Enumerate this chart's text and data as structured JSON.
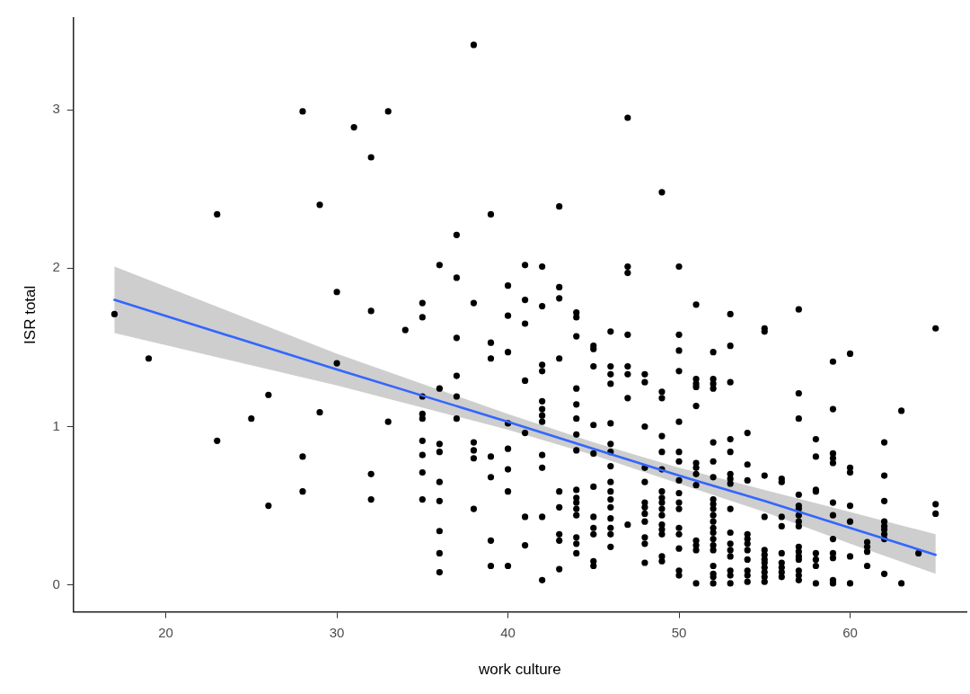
{
  "chart_data": {
    "type": "scatter",
    "xlabel": "work culture",
    "ylabel": "ISR total",
    "xlim": [
      14.6,
      66.8
    ],
    "ylim": [
      -0.17,
      3.58
    ],
    "xticks": [
      20,
      30,
      40,
      50,
      60
    ],
    "yticks": [
      0,
      1,
      2,
      3
    ],
    "grid": false,
    "legend": false,
    "series": [
      {
        "type": "scatter",
        "color": "#000000",
        "marker": "circle",
        "x": [
          17,
          19,
          23,
          23,
          25,
          26,
          26,
          28,
          28,
          28,
          29,
          29,
          30,
          30,
          31,
          32,
          32,
          32,
          32,
          33,
          33,
          34,
          35,
          35,
          35,
          35,
          35,
          35,
          35,
          35,
          35,
          36,
          36,
          36,
          36,
          36,
          36,
          36,
          36,
          36,
          37,
          37,
          37,
          37,
          37,
          37,
          38,
          38,
          38,
          38,
          38,
          38,
          39,
          39,
          39,
          39,
          39,
          39,
          39,
          40,
          40,
          40,
          40,
          40,
          40,
          40,
          40,
          41,
          41,
          41,
          41,
          41,
          41,
          41,
          42,
          42,
          42,
          42,
          42,
          42,
          42,
          42,
          42,
          42,
          42,
          42,
          43,
          43,
          43,
          43,
          43,
          43,
          43,
          43,
          43,
          44,
          44,
          44,
          44,
          44,
          44,
          44,
          44,
          44,
          44,
          44,
          44,
          44,
          44,
          44,
          44,
          45,
          45,
          45,
          45,
          45,
          45,
          45,
          45,
          45,
          45,
          45,
          46,
          46,
          46,
          46,
          46,
          46,
          46,
          46,
          46,
          46,
          46,
          46,
          46,
          46,
          46,
          46,
          47,
          47,
          47,
          47,
          47,
          47,
          47,
          47,
          48,
          48,
          48,
          48,
          48,
          48,
          48,
          48,
          48,
          48,
          48,
          48,
          49,
          49,
          49,
          49,
          49,
          49,
          49,
          49,
          49,
          49,
          49,
          49,
          49,
          49,
          49,
          49,
          50,
          50,
          50,
          50,
          50,
          50,
          50,
          50,
          50,
          50,
          50,
          50,
          50,
          50,
          50,
          50,
          51,
          51,
          51,
          51,
          51,
          51,
          51,
          51,
          51,
          51,
          51,
          51,
          51,
          52,
          52,
          52,
          52,
          52,
          52,
          52,
          52,
          52,
          52,
          52,
          52,
          52,
          52,
          52,
          52,
          52,
          52,
          52,
          52,
          52,
          53,
          53,
          53,
          53,
          53,
          53,
          53,
          53,
          53,
          53,
          53,
          53,
          53,
          53,
          53,
          53,
          54,
          54,
          54,
          54,
          54,
          54,
          54,
          54,
          54,
          54,
          54,
          55,
          55,
          55,
          55,
          55,
          55,
          55,
          55,
          55,
          55,
          55,
          55,
          56,
          56,
          56,
          56,
          56,
          56,
          56,
          56,
          56,
          57,
          57,
          57,
          57,
          57,
          57,
          57,
          57,
          57,
          57,
          57,
          57,
          57,
          57,
          57,
          57,
          58,
          58,
          58,
          58,
          58,
          58,
          58,
          58,
          59,
          59,
          59,
          59,
          59,
          59,
          59,
          59,
          59,
          59,
          59,
          59,
          60,
          60,
          60,
          60,
          60,
          60,
          60,
          61,
          61,
          61,
          61,
          62,
          62,
          62,
          62,
          62,
          62,
          62,
          62,
          62,
          63,
          63,
          64,
          65,
          65,
          65
        ],
        "values": [
          1.71,
          1.43,
          2.34,
          0.91,
          1.05,
          1.2,
          0.5,
          2.99,
          0.81,
          0.59,
          2.4,
          1.09,
          1.85,
          1.4,
          2.89,
          2.7,
          1.73,
          0.7,
          0.54,
          2.99,
          1.03,
          1.61,
          1.78,
          1.69,
          1.19,
          1.08,
          1.05,
          0.91,
          0.82,
          0.71,
          0.54,
          2.02,
          1.24,
          0.89,
          0.84,
          0.65,
          0.53,
          0.34,
          0.2,
          0.08,
          2.21,
          1.94,
          1.56,
          1.32,
          1.19,
          1.05,
          3.41,
          1.78,
          0.9,
          0.85,
          0.8,
          0.48,
          2.34,
          1.53,
          1.43,
          0.81,
          0.68,
          0.28,
          0.12,
          1.89,
          1.7,
          1.47,
          1.02,
          0.86,
          0.73,
          0.59,
          0.12,
          2.02,
          1.8,
          1.65,
          1.29,
          0.96,
          0.43,
          0.25,
          2.01,
          1.76,
          1.39,
          1.35,
          1.16,
          1.11,
          1.07,
          1.03,
          0.82,
          0.74,
          0.43,
          0.03,
          2.39,
          1.88,
          1.81,
          1.43,
          0.59,
          0.49,
          0.32,
          0.28,
          0.1,
          1.72,
          1.69,
          1.57,
          1.24,
          1.14,
          1.05,
          0.95,
          0.85,
          0.6,
          0.55,
          0.52,
          0.48,
          0.44,
          0.3,
          0.26,
          0.2,
          1.51,
          1.49,
          1.38,
          1.01,
          0.83,
          0.62,
          0.43,
          0.36,
          0.32,
          0.15,
          0.12,
          1.6,
          1.38,
          1.33,
          1.27,
          1.02,
          0.89,
          0.84,
          0.75,
          0.65,
          0.59,
          0.54,
          0.49,
          0.42,
          0.36,
          0.32,
          0.24,
          2.95,
          2.01,
          1.97,
          1.58,
          1.38,
          1.33,
          1.18,
          0.38,
          1.33,
          1.28,
          1.0,
          0.74,
          0.65,
          0.52,
          0.49,
          0.45,
          0.4,
          0.3,
          0.26,
          0.14,
          2.48,
          1.22,
          1.18,
          0.94,
          0.84,
          0.73,
          0.59,
          0.55,
          0.52,
          0.48,
          0.44,
          0.38,
          0.35,
          0.32,
          0.18,
          0.15,
          2.01,
          1.58,
          1.48,
          1.35,
          1.03,
          0.84,
          0.78,
          0.66,
          0.58,
          0.52,
          0.48,
          0.36,
          0.32,
          0.23,
          0.09,
          0.06,
          1.77,
          1.3,
          1.27,
          1.25,
          1.13,
          0.77,
          0.74,
          0.7,
          0.63,
          0.28,
          0.25,
          0.22,
          0.01,
          1.47,
          1.3,
          1.27,
          1.24,
          0.9,
          0.78,
          0.68,
          0.54,
          0.51,
          0.48,
          0.44,
          0.4,
          0.36,
          0.33,
          0.29,
          0.25,
          0.22,
          0.12,
          0.07,
          0.05,
          0.01,
          1.71,
          1.51,
          1.28,
          0.92,
          0.84,
          0.7,
          0.67,
          0.64,
          0.48,
          0.33,
          0.26,
          0.22,
          0.18,
          0.09,
          0.06,
          0.01,
          0.96,
          0.76,
          0.66,
          0.32,
          0.29,
          0.26,
          0.22,
          0.16,
          0.09,
          0.06,
          0.02,
          1.62,
          1.6,
          0.69,
          0.43,
          0.22,
          0.19,
          0.16,
          0.14,
          0.11,
          0.08,
          0.05,
          0.02,
          0.67,
          0.65,
          0.43,
          0.37,
          0.2,
          0.14,
          0.11,
          0.08,
          0.05,
          1.74,
          1.21,
          1.05,
          0.57,
          0.5,
          0.48,
          0.44,
          0.4,
          0.37,
          0.24,
          0.21,
          0.18,
          0.16,
          0.09,
          0.06,
          0.03,
          0.92,
          0.81,
          0.6,
          0.59,
          0.2,
          0.16,
          0.12,
          0.01,
          1.41,
          1.11,
          0.83,
          0.8,
          0.77,
          0.52,
          0.44,
          0.29,
          0.2,
          0.17,
          0.03,
          0.01,
          1.46,
          0.74,
          0.71,
          0.5,
          0.4,
          0.18,
          0.01,
          0.27,
          0.24,
          0.21,
          0.12,
          0.9,
          0.69,
          0.53,
          0.4,
          0.37,
          0.35,
          0.32,
          0.29,
          0.07,
          1.1,
          0.01,
          0.2,
          1.62,
          0.51,
          0.45
        ]
      },
      {
        "type": "line",
        "color": "#3366ff",
        "line_style": "solid",
        "x": [
          17,
          30,
          40,
          45,
          50,
          55,
          60,
          65
        ],
        "values": [
          1.8,
          1.36,
          1.03,
          0.86,
          0.69,
          0.53,
          0.36,
          0.19
        ],
        "lower": [
          1.59,
          1.26,
          0.98,
          0.82,
          0.64,
          0.46,
          0.26,
          0.07
        ],
        "upper": [
          2.01,
          1.46,
          1.08,
          0.9,
          0.74,
          0.6,
          0.46,
          0.32
        ]
      }
    ]
  }
}
